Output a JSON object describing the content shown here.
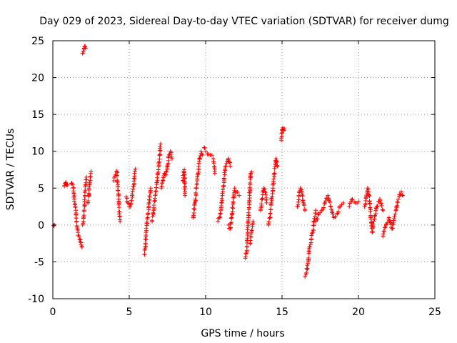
{
  "chart_data": {
    "type": "scatter",
    "title": "Day 029 of 2023, Sidereal Day-to-day VTEC variation (SDTVAR) for receiver dumg",
    "xlabel": "GPS time / hours",
    "ylabel": "SDTVAR / TECUs",
    "xlim": [
      0,
      25
    ],
    "ylim": [
      -10,
      25
    ],
    "xticks": [
      0,
      5,
      10,
      15,
      20,
      25
    ],
    "yticks": [
      -10,
      -5,
      0,
      5,
      10,
      15,
      20,
      25
    ],
    "xtick_labels": [
      "0",
      "5",
      "10",
      "15",
      "20",
      "25"
    ],
    "ytick_labels": [
      "-10",
      "-5",
      "0",
      "5",
      "10",
      "15",
      "20",
      "25"
    ],
    "grid": true,
    "marker": "+",
    "series_color": "#ff0000",
    "segments": [
      [
        [
          0.05,
          -0.1
        ],
        [
          0.1,
          0.0
        ]
      ],
      [
        [
          0.75,
          5.3
        ],
        [
          0.8,
          5.6
        ],
        [
          0.85,
          5.7
        ],
        [
          0.9,
          5.5
        ],
        [
          0.95,
          5.4
        ]
      ],
      [
        [
          1.2,
          5.6
        ],
        [
          1.3,
          5.5
        ],
        [
          1.35,
          5.0
        ],
        [
          1.4,
          3.5
        ],
        [
          1.5,
          2.0
        ],
        [
          1.55,
          0.5
        ],
        [
          1.6,
          -0.5
        ],
        [
          1.65,
          -1.0
        ],
        [
          1.7,
          -1.5
        ],
        [
          1.8,
          -2.0
        ],
        [
          1.85,
          -2.7
        ],
        [
          1.9,
          -3.0
        ]
      ],
      [
        [
          1.95,
          0.0
        ],
        [
          2.0,
          0.5
        ],
        [
          2.05,
          2.0
        ],
        [
          2.1,
          4.0
        ],
        [
          2.15,
          5.5
        ],
        [
          2.2,
          6.5
        ]
      ],
      [
        [
          1.95,
          23.3
        ],
        [
          2.0,
          23.6
        ],
        [
          2.05,
          24.0
        ],
        [
          2.1,
          24.2
        ],
        [
          2.15,
          24.0
        ]
      ],
      [
        [
          2.3,
          3.0
        ],
        [
          2.35,
          4.0
        ],
        [
          2.4,
          5.5
        ],
        [
          2.45,
          6.5
        ],
        [
          2.5,
          7.3
        ]
      ],
      [
        [
          4.0,
          6.0
        ],
        [
          4.1,
          6.8
        ],
        [
          4.2,
          7.3
        ],
        [
          4.25,
          5.5
        ],
        [
          4.3,
          3.5
        ],
        [
          4.35,
          1.5
        ],
        [
          4.4,
          0.5
        ]
      ],
      [
        [
          4.8,
          3.8
        ],
        [
          4.9,
          3.0
        ],
        [
          5.0,
          2.5
        ],
        [
          5.1,
          2.8
        ],
        [
          5.2,
          4.0
        ],
        [
          5.3,
          5.5
        ],
        [
          5.35,
          7.0
        ],
        [
          5.4,
          7.6
        ]
      ],
      [
        [
          6.0,
          -4.0
        ],
        [
          6.05,
          -3.0
        ],
        [
          6.1,
          -1.0
        ],
        [
          6.2,
          1.0
        ],
        [
          6.3,
          3.0
        ],
        [
          6.4,
          5.0
        ]
      ],
      [
        [
          6.5,
          0.5
        ],
        [
          6.6,
          2.0
        ],
        [
          6.7,
          4.0
        ],
        [
          6.8,
          5.5
        ],
        [
          6.9,
          7.5
        ],
        [
          7.0,
          9.5
        ],
        [
          7.05,
          11.0
        ]
      ],
      [
        [
          7.1,
          5.0
        ],
        [
          7.2,
          6.0
        ],
        [
          7.3,
          7.0
        ],
        [
          7.4,
          6.8
        ],
        [
          7.5,
          8.0
        ],
        [
          7.6,
          9.5
        ],
        [
          7.7,
          10.0
        ],
        [
          7.8,
          9.0
        ]
      ],
      [
        [
          8.5,
          6.0
        ],
        [
          8.6,
          7.5
        ],
        [
          8.65,
          4.0
        ]
      ],
      [
        [
          9.2,
          1.0
        ],
        [
          9.3,
          3.0
        ],
        [
          9.4,
          5.0
        ],
        [
          9.5,
          7.0
        ],
        [
          9.6,
          9.0
        ],
        [
          9.7,
          10.0
        ],
        [
          9.8,
          9.5
        ]
      ],
      [
        [
          9.9,
          10.5
        ],
        [
          10.0,
          10.0
        ],
        [
          10.3,
          9.5
        ],
        [
          10.5,
          9.0
        ],
        [
          10.6,
          7.0
        ]
      ],
      [
        [
          10.8,
          0.5
        ],
        [
          10.9,
          1.0
        ],
        [
          11.0,
          2.0
        ],
        [
          11.1,
          4.0
        ],
        [
          11.2,
          6.0
        ],
        [
          11.3,
          8.0
        ],
        [
          11.5,
          9.0
        ],
        [
          11.6,
          8.0
        ]
      ],
      [
        [
          11.5,
          0.0
        ],
        [
          11.6,
          -0.5
        ],
        [
          11.7,
          1.0
        ],
        [
          11.8,
          3.0
        ],
        [
          11.9,
          5.0
        ],
        [
          12.0,
          4.5
        ],
        [
          12.2,
          4.0
        ]
      ],
      [
        [
          12.6,
          -4.5
        ],
        [
          12.7,
          -3.0
        ],
        [
          12.75,
          -1.0
        ],
        [
          12.8,
          1.0
        ],
        [
          12.85,
          3.0
        ],
        [
          12.9,
          5.5
        ],
        [
          12.95,
          7.0
        ],
        [
          13.0,
          7.2
        ]
      ],
      [
        [
          12.9,
          -2.5
        ],
        [
          13.0,
          -1.0
        ],
        [
          13.1,
          0.5
        ]
      ],
      [
        [
          13.6,
          2.0
        ],
        [
          13.7,
          3.5
        ],
        [
          13.8,
          5.0
        ],
        [
          13.9,
          4.5
        ],
        [
          14.0,
          3.0
        ]
      ],
      [
        [
          14.1,
          0.0
        ],
        [
          14.2,
          1.0
        ],
        [
          14.3,
          3.0
        ],
        [
          14.4,
          5.0
        ],
        [
          14.5,
          7.0
        ],
        [
          14.6,
          9.0
        ],
        [
          14.7,
          8.0
        ]
      ],
      [
        [
          14.95,
          11.5
        ],
        [
          15.0,
          12.5
        ],
        [
          15.05,
          13.2
        ],
        [
          15.1,
          12.8
        ],
        [
          15.15,
          13.0
        ]
      ],
      [
        [
          16.0,
          2.5
        ],
        [
          16.1,
          4.0
        ],
        [
          16.2,
          5.0
        ],
        [
          16.3,
          4.5
        ],
        [
          16.4,
          3.0
        ],
        [
          16.5,
          2.0
        ]
      ],
      [
        [
          16.5,
          -7.0
        ],
        [
          16.6,
          -6.5
        ],
        [
          16.7,
          -5.0
        ],
        [
          16.8,
          -3.0
        ],
        [
          16.9,
          -2.0
        ],
        [
          17.0,
          -1.0
        ],
        [
          17.1,
          0.5
        ],
        [
          17.2,
          2.0
        ]
      ],
      [
        [
          17.2,
          0.5
        ],
        [
          17.4,
          1.5
        ],
        [
          17.6,
          2.0
        ],
        [
          17.8,
          3.0
        ],
        [
          18.0,
          4.0
        ],
        [
          18.2,
          2.5
        ],
        [
          18.4,
          1.0
        ],
        [
          18.6,
          1.5
        ],
        [
          18.8,
          2.5
        ],
        [
          19.0,
          3.0
        ]
      ],
      [
        [
          19.4,
          2.5
        ],
        [
          19.6,
          3.5
        ],
        [
          19.8,
          3.0
        ],
        [
          20.0,
          3.2
        ]
      ],
      [
        [
          20.4,
          2.5
        ],
        [
          20.6,
          5.0
        ],
        [
          20.7,
          4.0
        ],
        [
          20.8,
          1.0
        ],
        [
          20.9,
          -1.0
        ],
        [
          21.0,
          0.5
        ],
        [
          21.2,
          2.5
        ],
        [
          21.4,
          3.5
        ],
        [
          21.6,
          2.0
        ]
      ],
      [
        [
          21.6,
          -1.5
        ],
        [
          21.8,
          0.0
        ],
        [
          22.0,
          1.0
        ],
        [
          22.2,
          -0.5
        ],
        [
          22.4,
          1.5
        ],
        [
          22.6,
          3.5
        ],
        [
          22.8,
          4.5
        ],
        [
          22.9,
          4.0
        ]
      ]
    ]
  }
}
